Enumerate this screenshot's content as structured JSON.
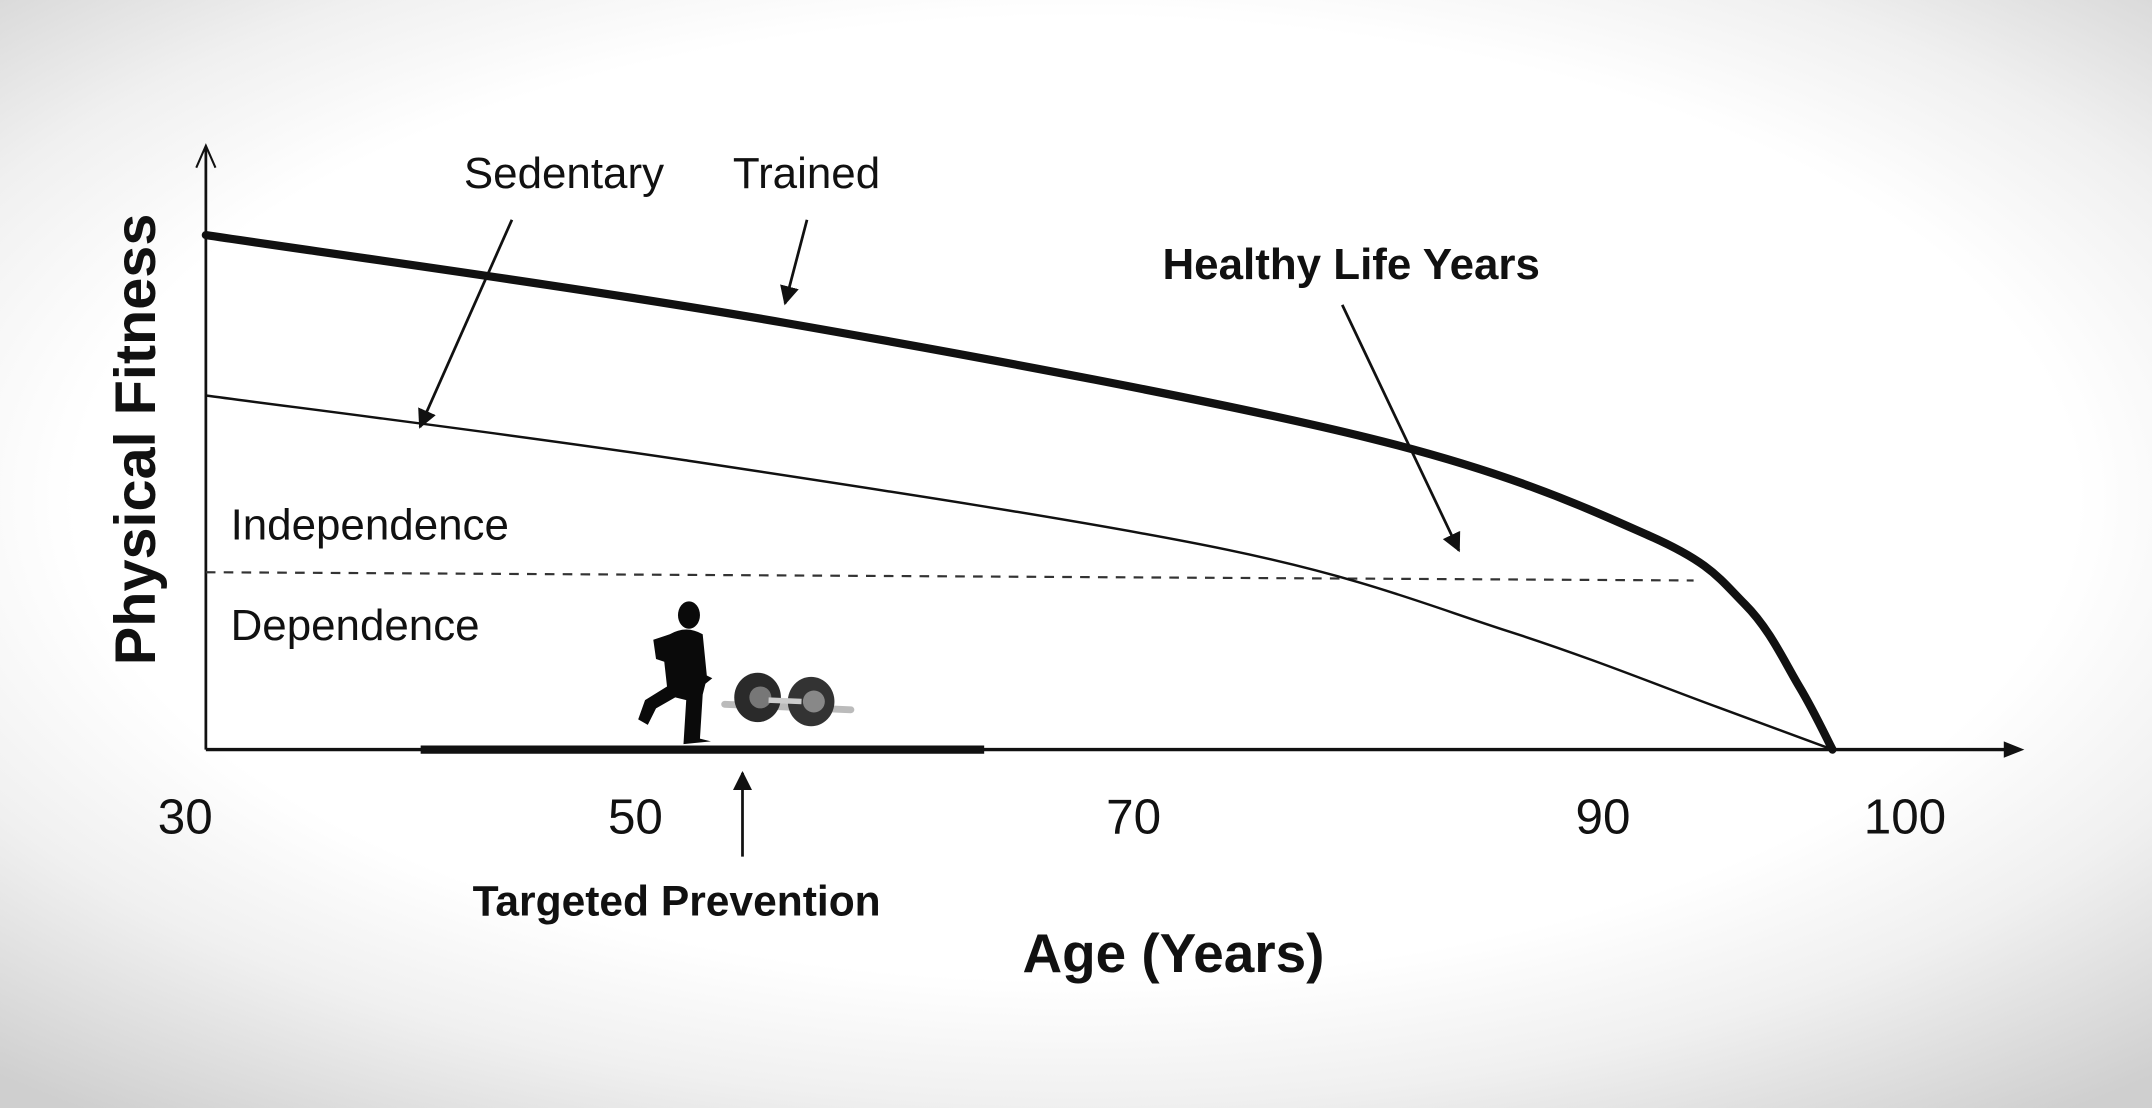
{
  "chart_data": {
    "type": "line",
    "xlabel": "Age (Years)",
    "ylabel": "Physical Fitness",
    "x_ticks": [
      "30",
      "50",
      "70",
      "90",
      "100"
    ],
    "x_tick_values": [
      30,
      50,
      70,
      90,
      100
    ],
    "y_units": "relative (unlabeled axis, 0-100)",
    "grid": false,
    "series": [
      {
        "name": "Trained",
        "style": "thick solid",
        "x": [
          30,
          56,
          80,
          91.5,
          94.7,
          96.5,
          97.6
        ],
        "y": [
          85,
          70.5,
          51.5,
          35.4,
          24,
          10.4,
          0
        ]
      },
      {
        "name": "Sedentary",
        "style": "thin solid",
        "x": [
          30,
          52,
          74,
          86,
          93.8,
          97.6
        ],
        "y": [
          58.5,
          47.8,
          33,
          19.5,
          7,
          0
        ]
      }
    ],
    "threshold": {
      "y": 29.3,
      "x_end": 93,
      "style": "dashed",
      "above_label": "Independence",
      "below_label": "Dependence"
    },
    "prevention_band": {
      "x_start": 40,
      "x_end": 64,
      "label": "Targeted Prevention"
    },
    "annotations": [
      "Healthy Life Years"
    ],
    "icons": [
      "runner-silhouette-icon",
      "barbell-icon"
    ],
    "colors": {
      "line": "#111111",
      "background": "#ffffff"
    }
  }
}
